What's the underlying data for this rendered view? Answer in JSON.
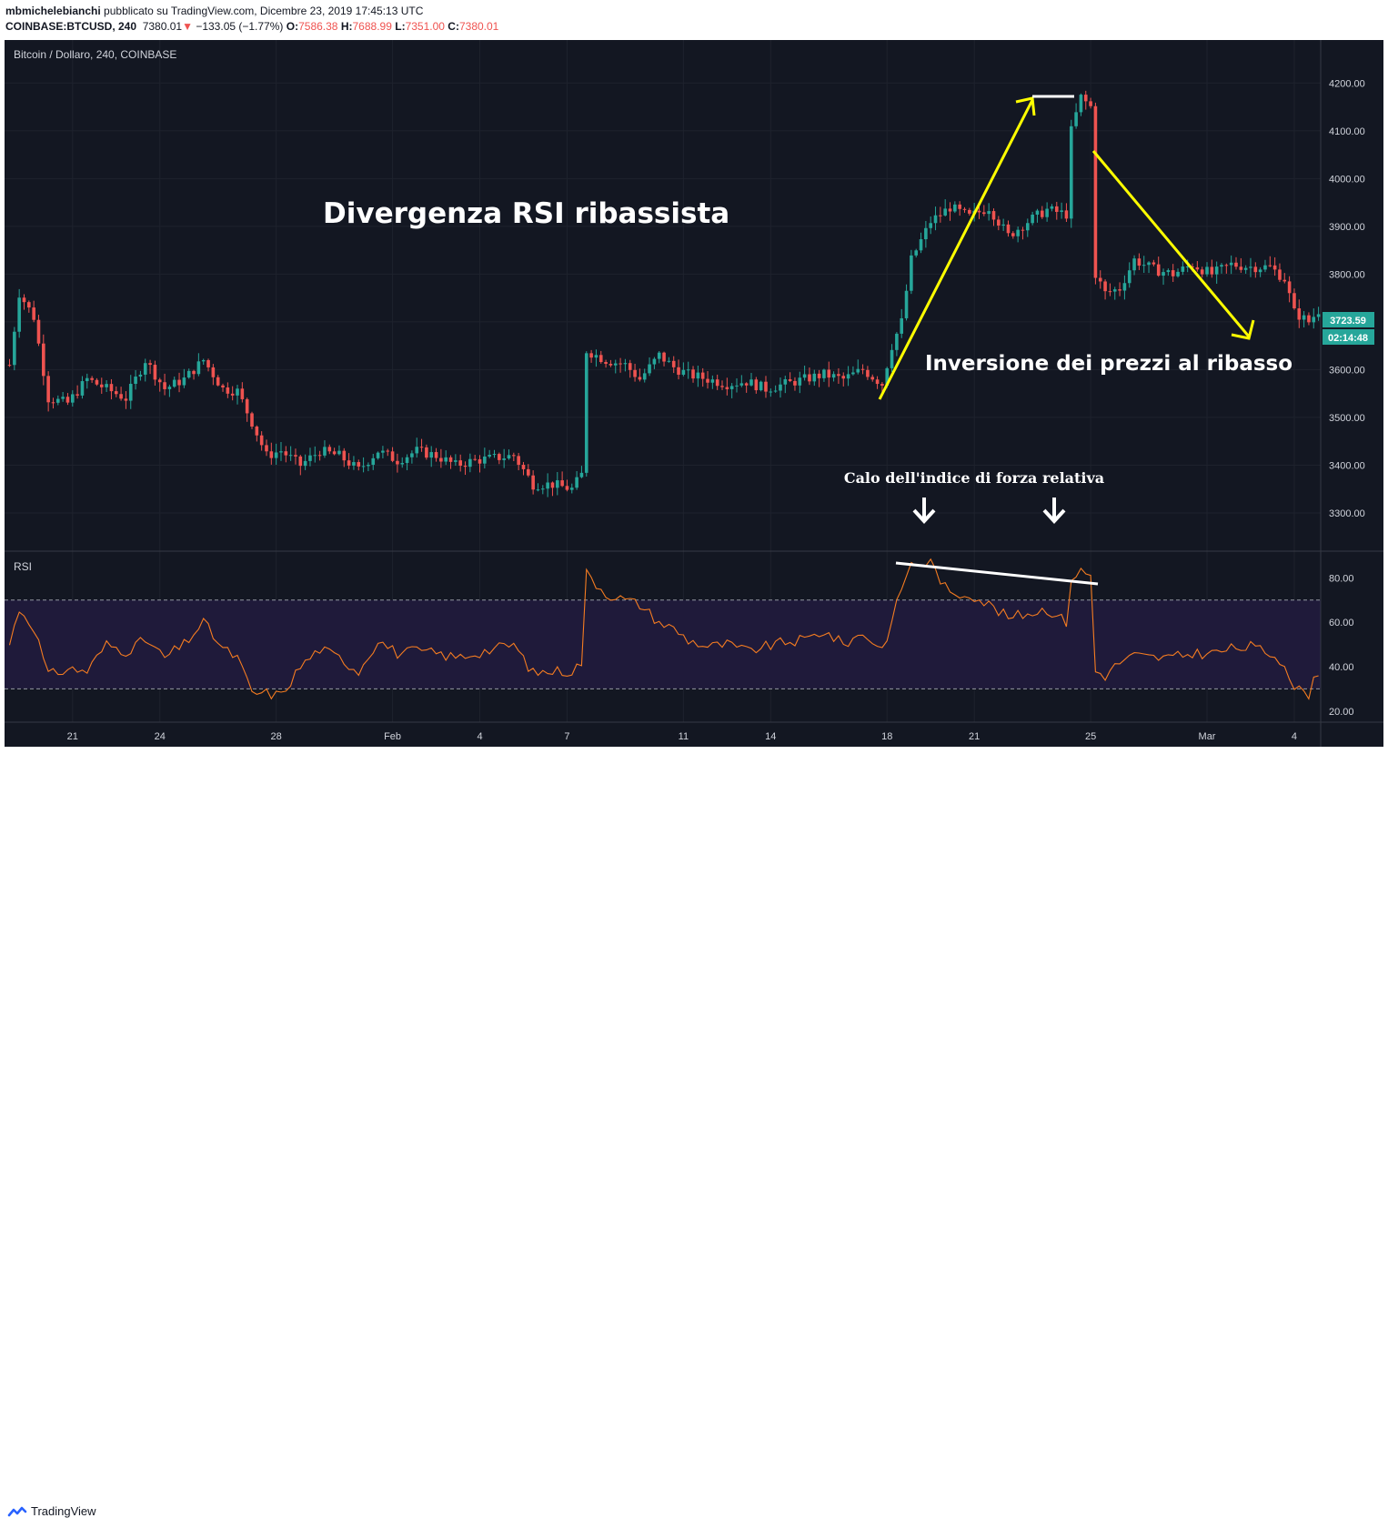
{
  "header": {
    "author": "mbmichelebianchi",
    "published": "pubblicato su TradingView.com, Dicembre 23, 2019 17:45:13 UTC",
    "symbol": "COINBASE:BTCUSD, 240",
    "last": "7380.01",
    "change": "−133.05 (−1.77%)",
    "open_label": "O:",
    "open": "7586.38",
    "high_label": "H:",
    "high": "7688.99",
    "low_label": "L:",
    "low": "7351.00",
    "close_label": "C:",
    "close": "7380.01"
  },
  "footer": {
    "brand": "TradingView"
  },
  "colors": {
    "background": "#131722",
    "up": "#26a69a",
    "down": "#ef5350",
    "rsi_line": "#f57c21",
    "rsi_band": "#1f1a3a",
    "annotation": "#ffff00"
  },
  "chart_data": [
    {
      "type": "candlestick",
      "title": "Bitcoin / Dollaro, 240, COINBASE",
      "ylim": [
        3220,
        4290
      ],
      "y_ticks": [
        3300,
        3400,
        3500,
        3600,
        3700,
        3800,
        3900,
        4000,
        4100,
        4200
      ],
      "y_tick_labels": [
        "3300.00",
        "3400.00",
        "3500.00",
        "3600.00",
        "3700.00",
        "3800.00",
        "3900.00",
        "4000.00",
        "4100.00",
        "4200.00"
      ],
      "x_tick_labels": [
        "21",
        "24",
        "28",
        "Feb",
        "4",
        "7",
        "11",
        "14",
        "18",
        "21",
        "25",
        "Mar",
        "4"
      ],
      "x_tick_bars": [
        13,
        31,
        55,
        79,
        97,
        115,
        139,
        157,
        181,
        199,
        223,
        247,
        265
      ],
      "last_price_label": "3723.59",
      "countdown_label": "02:14:48",
      "ohlc_anchors": [
        [
          0,
          3610
        ],
        [
          2,
          3760
        ],
        [
          5,
          3710
        ],
        [
          8,
          3540
        ],
        [
          12,
          3530
        ],
        [
          16,
          3580
        ],
        [
          20,
          3560
        ],
        [
          24,
          3540
        ],
        [
          28,
          3620
        ],
        [
          32,
          3560
        ],
        [
          36,
          3580
        ],
        [
          40,
          3620
        ],
        [
          44,
          3560
        ],
        [
          47,
          3555
        ],
        [
          50,
          3490
        ],
        [
          53,
          3420
        ],
        [
          56,
          3430
        ],
        [
          60,
          3400
        ],
        [
          64,
          3430
        ],
        [
          68,
          3420
        ],
        [
          72,
          3390
        ],
        [
          76,
          3430
        ],
        [
          80,
          3410
        ],
        [
          84,
          3430
        ],
        [
          88,
          3420
        ],
        [
          92,
          3400
        ],
        [
          96,
          3410
        ],
        [
          100,
          3415
        ],
        [
          104,
          3420
        ],
        [
          108,
          3360
        ],
        [
          112,
          3360
        ],
        [
          116,
          3350
        ],
        [
          118,
          3380
        ],
        [
          119,
          3640
        ],
        [
          123,
          3620
        ],
        [
          127,
          3610
        ],
        [
          130,
          3580
        ],
        [
          134,
          3630
        ],
        [
          137,
          3605
        ],
        [
          140,
          3590
        ],
        [
          144,
          3580
        ],
        [
          148,
          3570
        ],
        [
          152,
          3575
        ],
        [
          156,
          3560
        ],
        [
          160,
          3570
        ],
        [
          164,
          3580
        ],
        [
          168,
          3590
        ],
        [
          172,
          3580
        ],
        [
          176,
          3600
        ],
        [
          180,
          3570
        ],
        [
          182,
          3650
        ],
        [
          184,
          3700
        ],
        [
          186,
          3830
        ],
        [
          190,
          3910
        ],
        [
          194,
          3940
        ],
        [
          198,
          3920
        ],
        [
          202,
          3940
        ],
        [
          206,
          3880
        ],
        [
          210,
          3910
        ],
        [
          214,
          3935
        ],
        [
          218,
          3925
        ],
        [
          219,
          4100
        ],
        [
          221,
          4170
        ],
        [
          223,
          4150
        ],
        [
          224,
          3800
        ],
        [
          226,
          3760
        ],
        [
          229,
          3770
        ],
        [
          232,
          3830
        ],
        [
          236,
          3810
        ],
        [
          240,
          3800
        ],
        [
          244,
          3820
        ],
        [
          248,
          3800
        ],
        [
          252,
          3820
        ],
        [
          256,
          3815
        ],
        [
          260,
          3815
        ],
        [
          263,
          3790
        ],
        [
          265,
          3720
        ],
        [
          268,
          3700
        ],
        [
          270,
          3724
        ]
      ],
      "annotations": [
        "Divergenza RSI ribassista",
        "Inversione dei prezzi al ribasso",
        "Calo dell'indice di forza relativa"
      ]
    },
    {
      "type": "line",
      "title": "RSI",
      "ylim": [
        15,
        92
      ],
      "y_ticks": [
        20,
        40,
        60,
        80
      ],
      "y_tick_labels": [
        "20.00",
        "40.00",
        "60.00",
        "80.00"
      ],
      "band": [
        30,
        70
      ],
      "series": [
        {
          "anchors": [
            [
              0,
              50
            ],
            [
              2,
              66
            ],
            [
              5,
              58
            ],
            [
              8,
              36
            ],
            [
              12,
              39
            ],
            [
              16,
              38
            ],
            [
              20,
              50
            ],
            [
              24,
              47
            ],
            [
              28,
              52
            ],
            [
              32,
              44
            ],
            [
              36,
              50
            ],
            [
              40,
              60
            ],
            [
              44,
              48
            ],
            [
              47,
              44
            ],
            [
              50,
              28
            ],
            [
              53,
              28
            ],
            [
              56,
              27
            ],
            [
              60,
              40
            ],
            [
              64,
              48
            ],
            [
              68,
              44
            ],
            [
              72,
              38
            ],
            [
              76,
              52
            ],
            [
              80,
              46
            ],
            [
              84,
              47
            ],
            [
              88,
              46
            ],
            [
              92,
              44
            ],
            [
              96,
              46
            ],
            [
              100,
              48
            ],
            [
              104,
              50
            ],
            [
              108,
              37
            ],
            [
              112,
              38
            ],
            [
              116,
              38
            ],
            [
              118,
              42
            ],
            [
              119,
              82
            ],
            [
              123,
              73
            ],
            [
              127,
              70
            ],
            [
              130,
              68
            ],
            [
              134,
              60
            ],
            [
              137,
              57
            ],
            [
              140,
              52
            ],
            [
              144,
              49
            ],
            [
              148,
              50
            ],
            [
              152,
              47
            ],
            [
              156,
              49
            ],
            [
              160,
              51
            ],
            [
              164,
              52
            ],
            [
              168,
              56
            ],
            [
              172,
              50
            ],
            [
              176,
              55
            ],
            [
              180,
              48
            ],
            [
              182,
              60
            ],
            [
              184,
              76
            ],
            [
              186,
              86
            ],
            [
              190,
              87
            ],
            [
              194,
              72
            ],
            [
              198,
              73
            ],
            [
              202,
              68
            ],
            [
              206,
              62
            ],
            [
              210,
              64
            ],
            [
              214,
              66
            ],
            [
              218,
              60
            ],
            [
              219,
              80
            ],
            [
              221,
              83
            ],
            [
              223,
              81
            ],
            [
              224,
              38
            ],
            [
              226,
              36
            ],
            [
              229,
              42
            ],
            [
              232,
              45
            ],
            [
              236,
              44
            ],
            [
              240,
              44
            ],
            [
              244,
              46
            ],
            [
              248,
              46
            ],
            [
              252,
              48
            ],
            [
              256,
              49
            ],
            [
              260,
              46
            ],
            [
              263,
              42
            ],
            [
              265,
              30
            ],
            [
              268,
              28
            ],
            [
              270,
              38
            ]
          ]
        }
      ]
    }
  ]
}
